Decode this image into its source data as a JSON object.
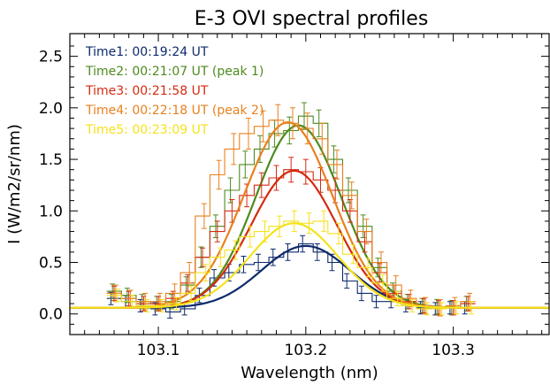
{
  "chart_data": {
    "type": "line",
    "title": "E-3 OVI spectral profiles",
    "xlabel": "Wavelength (nm)",
    "ylabel": "I (W/m2/sr/nm)",
    "xlim": [
      103.04,
      103.365
    ],
    "ylim": [
      -0.2,
      2.72
    ],
    "xticks": [
      "103.1",
      "103.2",
      "103.3"
    ],
    "yticks": [
      "0.0",
      "0.5",
      "1.0",
      "1.5",
      "2.0",
      "2.5"
    ],
    "legend_position": "top-left",
    "x": [
      103.07,
      103.08,
      103.09,
      103.1,
      103.11,
      103.12,
      103.13,
      103.14,
      103.15,
      103.16,
      103.17,
      103.18,
      103.19,
      103.2,
      103.21,
      103.22,
      103.23,
      103.24,
      103.25,
      103.26,
      103.27,
      103.28,
      103.29,
      103.3,
      103.31
    ],
    "series": [
      {
        "name": "Time1: 00:19:24 UT",
        "color": "#0d2a6b",
        "fit": {
          "amplitude": 0.6,
          "center": 103.2,
          "sigma": 0.03,
          "baseline": 0.06
        },
        "values": [
          0.15,
          0.12,
          0.08,
          0.05,
          0.02,
          0.05,
          0.18,
          0.35,
          0.4,
          0.48,
          0.5,
          0.55,
          0.6,
          0.68,
          0.6,
          0.5,
          0.32,
          0.2,
          0.12,
          0.12,
          0.08,
          0.06,
          0.05,
          0.06,
          0.06
        ],
        "errors": [
          0.06,
          0.06,
          0.06,
          0.06,
          0.06,
          0.06,
          0.07,
          0.08,
          0.08,
          0.08,
          0.08,
          0.08,
          0.08,
          0.08,
          0.08,
          0.08,
          0.07,
          0.07,
          0.06,
          0.06,
          0.06,
          0.06,
          0.06,
          0.06,
          0.06
        ]
      },
      {
        "name": "Time2: 00:21:07 UT (peak 1)",
        "color": "#4d8a1e",
        "fit": {
          "amplitude": 1.77,
          "center": 103.195,
          "sigma": 0.029,
          "baseline": 0.06
        },
        "values": [
          0.22,
          0.18,
          0.12,
          0.1,
          0.12,
          0.28,
          0.55,
          0.85,
          1.2,
          1.45,
          1.6,
          1.75,
          1.78,
          1.92,
          1.85,
          1.5,
          1.2,
          0.85,
          0.45,
          0.22,
          0.12,
          0.08,
          0.07,
          0.06,
          0.1
        ],
        "errors": [
          0.07,
          0.07,
          0.07,
          0.07,
          0.07,
          0.08,
          0.1,
          0.11,
          0.12,
          0.13,
          0.13,
          0.13,
          0.13,
          0.13,
          0.13,
          0.13,
          0.12,
          0.11,
          0.09,
          0.08,
          0.07,
          0.07,
          0.07,
          0.07,
          0.07
        ]
      },
      {
        "name": "Time3: 00:21:58 UT",
        "color": "#d42a10",
        "fit": {
          "amplitude": 1.33,
          "center": 103.192,
          "sigma": 0.029,
          "baseline": 0.06
        },
        "values": [
          0.2,
          0.15,
          0.1,
          0.1,
          0.15,
          0.3,
          0.55,
          0.8,
          1.0,
          1.15,
          1.25,
          1.32,
          1.4,
          1.38,
          1.3,
          1.2,
          1.0,
          0.7,
          0.4,
          0.2,
          0.12,
          0.08,
          0.06,
          0.06,
          0.1
        ],
        "errors": [
          0.07,
          0.07,
          0.07,
          0.07,
          0.07,
          0.08,
          0.09,
          0.1,
          0.11,
          0.11,
          0.12,
          0.12,
          0.12,
          0.12,
          0.12,
          0.12,
          0.11,
          0.1,
          0.09,
          0.08,
          0.07,
          0.07,
          0.07,
          0.07,
          0.07
        ]
      },
      {
        "name": "Time4: 00:22:18 UT (peak 2)",
        "color": "#e8801e",
        "fit": {
          "amplitude": 1.8,
          "center": 103.188,
          "sigma": 0.03,
          "baseline": 0.06
        },
        "values": [
          0.2,
          0.15,
          0.12,
          0.12,
          0.2,
          0.4,
          0.95,
          1.35,
          1.6,
          1.75,
          1.82,
          1.88,
          1.85,
          1.8,
          1.7,
          1.45,
          1.15,
          0.8,
          0.5,
          0.28,
          0.15,
          0.08,
          0.06,
          0.08,
          0.12
        ],
        "errors": [
          0.08,
          0.08,
          0.08,
          0.08,
          0.09,
          0.1,
          0.12,
          0.14,
          0.15,
          0.15,
          0.15,
          0.15,
          0.15,
          0.15,
          0.15,
          0.14,
          0.13,
          0.12,
          0.1,
          0.09,
          0.08,
          0.08,
          0.08,
          0.08,
          0.08
        ]
      },
      {
        "name": "Time5: 00:23:09 UT",
        "color": "#f5e21a",
        "fit": {
          "amplitude": 0.82,
          "center": 103.192,
          "sigma": 0.03,
          "baseline": 0.06
        },
        "values": [
          0.18,
          0.12,
          0.08,
          0.08,
          0.1,
          0.2,
          0.4,
          0.55,
          0.62,
          0.75,
          0.8,
          0.85,
          0.9,
          0.88,
          0.9,
          0.78,
          0.58,
          0.45,
          0.3,
          0.15,
          0.08,
          0.05,
          0.05,
          0.06,
          0.06
        ],
        "errors": [
          0.06,
          0.06,
          0.06,
          0.06,
          0.06,
          0.07,
          0.08,
          0.09,
          0.09,
          0.1,
          0.1,
          0.1,
          0.1,
          0.1,
          0.1,
          0.1,
          0.09,
          0.09,
          0.08,
          0.07,
          0.06,
          0.06,
          0.06,
          0.06,
          0.06
        ]
      }
    ]
  }
}
